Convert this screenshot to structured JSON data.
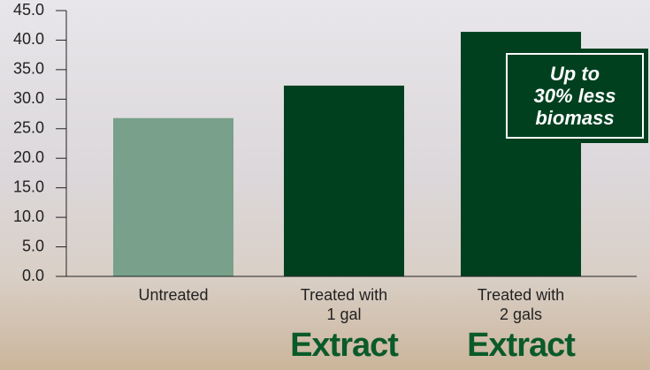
{
  "chart_data": {
    "type": "bar",
    "categories": [
      "Untreated",
      "Treated with\n1 gal",
      "Treated with\n2 gals"
    ],
    "values": [
      26.8,
      32.3,
      41.4
    ],
    "colors": [
      "#78a08a",
      "#00401f",
      "#00401f"
    ],
    "ylim": [
      0,
      45
    ],
    "yticks": [
      {
        "value": 0,
        "label": "0.0"
      },
      {
        "value": 5,
        "label": "5.0"
      },
      {
        "value": 10,
        "label": "10.0"
      },
      {
        "value": 15,
        "label": "15.0"
      },
      {
        "value": 20,
        "label": "20.0"
      },
      {
        "value": 25,
        "label": "25.0"
      },
      {
        "value": 30,
        "label": "30.0"
      },
      {
        "value": 35,
        "label": "35.0"
      },
      {
        "value": 40,
        "label": "40.0"
      },
      {
        "value": 45,
        "label": "45.0"
      }
    ],
    "annotation": "Up to\n30% less\nbiomass",
    "logo": "Extract"
  }
}
